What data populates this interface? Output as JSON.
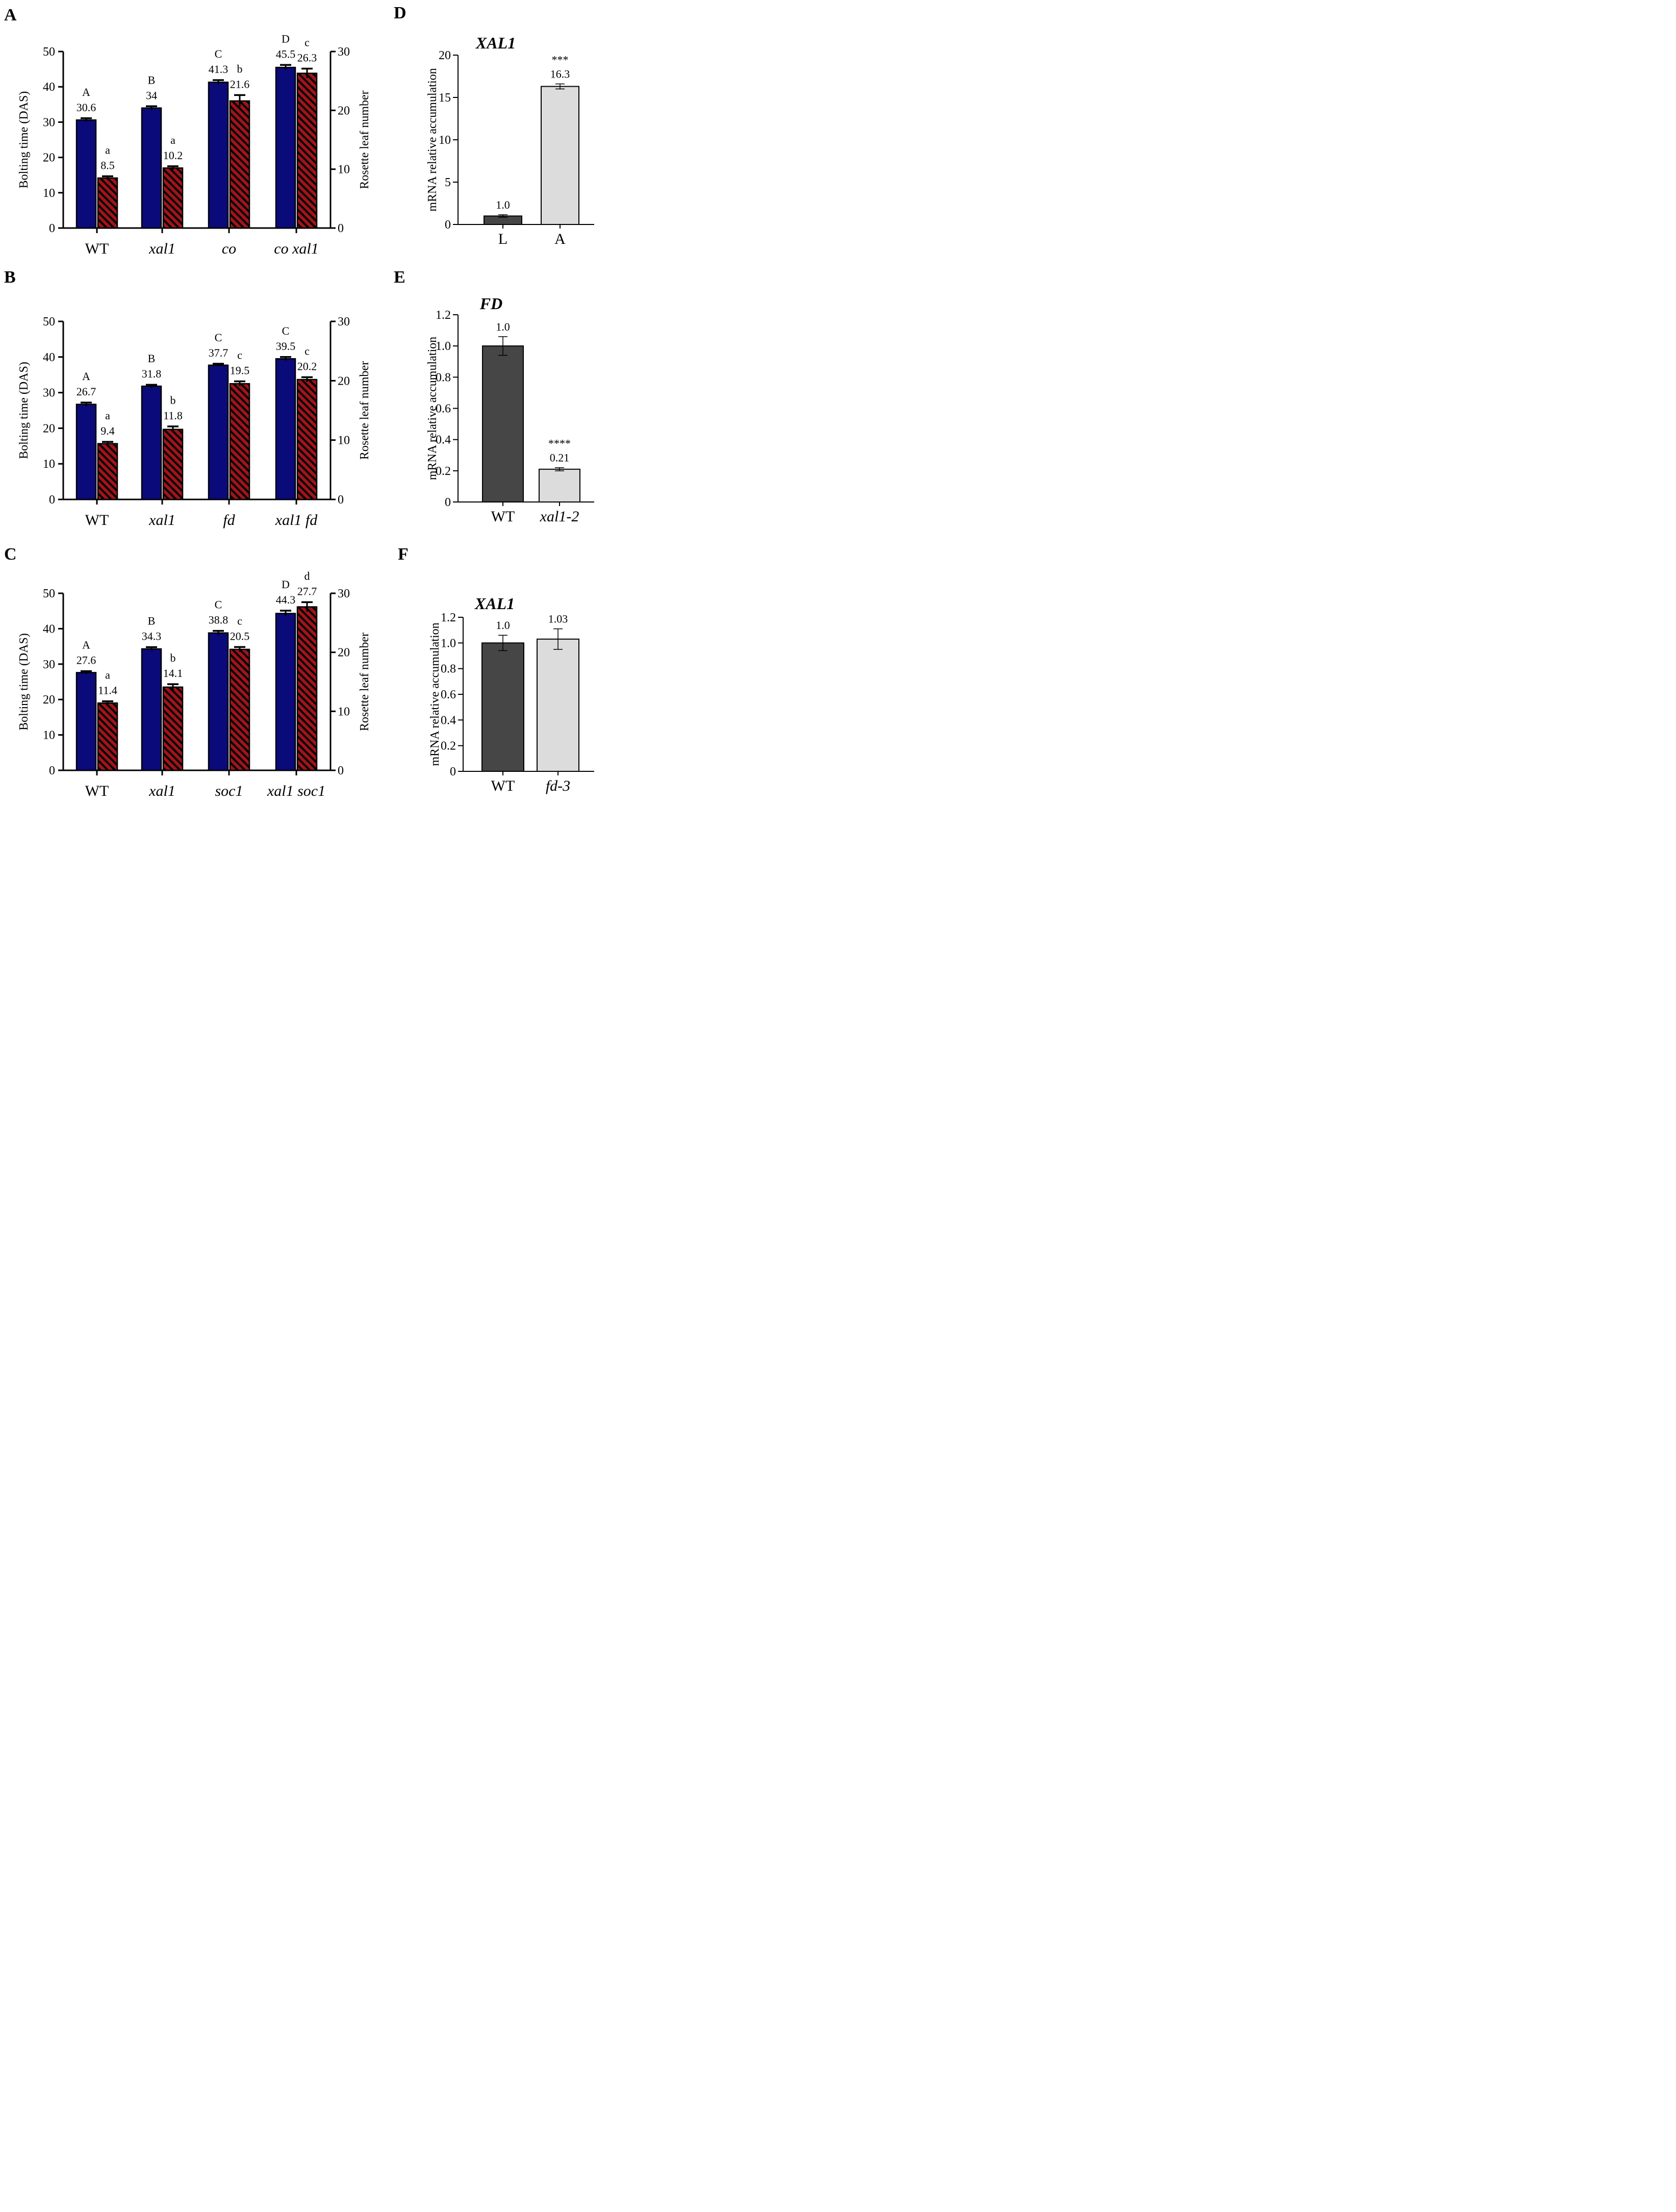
{
  "colors": {
    "bolting": "#0a0a7a",
    "leaf": "#a0141a",
    "leaf_stripe": "#000000",
    "dark_bar": "#464646",
    "light_bar": "#dcdcdc"
  },
  "chart_data": [
    {
      "panel": "A",
      "type": "bar",
      "categories": [
        "WT",
        "xal1",
        "co",
        "co xal1"
      ],
      "categories_italic": [
        false,
        true,
        true,
        true
      ],
      "ylabel": "Bolting time (DAS)",
      "y2label": "Rosette leaf number",
      "ylim": [
        0,
        50
      ],
      "yticks": [
        0,
        10,
        20,
        30,
        40,
        50
      ],
      "y2lim": [
        0,
        30
      ],
      "y2ticks": [
        0,
        10,
        20,
        30
      ],
      "series": [
        {
          "name": "Bolting time",
          "axis": "left",
          "style": "solid",
          "values": [
            30.6,
            34,
            41.3,
            45.5
          ],
          "errors": [
            0.5,
            0.5,
            0.6,
            0.7
          ],
          "labels": [
            "30.6",
            "34",
            "41.3",
            "45.5"
          ],
          "letters": [
            "A",
            "B",
            "C",
            "D"
          ]
        },
        {
          "name": "Rosette leaf number",
          "axis": "right",
          "style": "striped",
          "values": [
            8.5,
            10.2,
            21.6,
            26.3
          ],
          "errors": [
            0.3,
            0.3,
            1.0,
            0.8
          ],
          "labels": [
            "8.5",
            "10.2",
            "21.6",
            "26.3"
          ],
          "letters": [
            "a",
            "a",
            "b",
            "c"
          ]
        }
      ]
    },
    {
      "panel": "B",
      "type": "bar",
      "categories": [
        "WT",
        "xal1",
        "fd",
        "xal1 fd"
      ],
      "categories_italic": [
        false,
        true,
        true,
        true
      ],
      "ylabel": "Bolting time (DAS)",
      "y2label": "Rosette leaf number",
      "ylim": [
        0,
        50
      ],
      "yticks": [
        0,
        10,
        20,
        30,
        40,
        50
      ],
      "y2lim": [
        0,
        30
      ],
      "y2ticks": [
        0,
        10,
        20,
        30
      ],
      "series": [
        {
          "name": "Bolting time",
          "axis": "left",
          "style": "solid",
          "values": [
            26.7,
            31.8,
            37.7,
            39.5
          ],
          "errors": [
            0.5,
            0.4,
            0.4,
            0.5
          ],
          "labels": [
            "26.7",
            "31.8",
            "37.7",
            "39.5"
          ],
          "letters": [
            "A",
            "B",
            "C",
            "C"
          ]
        },
        {
          "name": "Rosette leaf number",
          "axis": "right",
          "style": "striped",
          "values": [
            9.4,
            11.8,
            19.5,
            20.2
          ],
          "errors": [
            0.3,
            0.5,
            0.4,
            0.4
          ],
          "labels": [
            "9.4",
            "11.8",
            "19.5",
            "20.2"
          ],
          "letters": [
            "a",
            "b",
            "c",
            "c"
          ]
        }
      ]
    },
    {
      "panel": "C",
      "type": "bar",
      "categories": [
        "WT",
        "xal1",
        "soc1",
        "xal1 soc1"
      ],
      "categories_italic": [
        false,
        true,
        true,
        true
      ],
      "ylabel": "Bolting time (DAS)",
      "y2label": "Rosette leaf number",
      "ylim": [
        0,
        50
      ],
      "yticks": [
        0,
        10,
        20,
        30,
        40,
        50
      ],
      "y2lim": [
        0,
        30
      ],
      "y2ticks": [
        0,
        10,
        20,
        30
      ],
      "series": [
        {
          "name": "Bolting time",
          "axis": "left",
          "style": "solid",
          "values": [
            27.6,
            34.3,
            38.8,
            44.3
          ],
          "errors": [
            0.4,
            0.5,
            0.6,
            0.8
          ],
          "labels": [
            "27.6",
            "34.3",
            "38.8",
            "44.3"
          ],
          "letters": [
            "A",
            "B",
            "C",
            "D"
          ]
        },
        {
          "name": "Rosette leaf number",
          "axis": "right",
          "style": "striped",
          "values": [
            11.4,
            14.1,
            20.5,
            27.7
          ],
          "errors": [
            0.3,
            0.5,
            0.4,
            0.8
          ],
          "labels": [
            "11.4",
            "14.1",
            "20.5",
            "27.7"
          ],
          "letters": [
            "a",
            "b",
            "c",
            "d"
          ]
        }
      ]
    },
    {
      "panel": "D",
      "type": "bar",
      "title": "XAL1",
      "categories": [
        "L",
        "A"
      ],
      "categories_italic": [
        false,
        false
      ],
      "ylabel": "mRNA relative accumulation",
      "ylim": [
        0,
        20
      ],
      "yticks": [
        0,
        5,
        10,
        15,
        20
      ],
      "tick_labels": [
        "0",
        "5",
        "10",
        "15",
        "20"
      ],
      "values": [
        1.0,
        16.3
      ],
      "errors": [
        0.15,
        0.3
      ],
      "labels": [
        "1.0",
        "16.3"
      ],
      "stars": [
        "",
        "***"
      ]
    },
    {
      "panel": "E",
      "type": "bar",
      "title": "FD",
      "categories": [
        "WT",
        "xal1-2"
      ],
      "categories_italic": [
        false,
        true
      ],
      "ylabel": "mRNA relative accumulation",
      "ylim": [
        0,
        1.2
      ],
      "yticks": [
        0,
        0.2,
        0.4,
        0.6,
        0.8,
        1.0,
        1.2
      ],
      "tick_labels": [
        "0",
        "0.2",
        "0.4",
        "0.6",
        "0.8",
        "1.0",
        "1.2"
      ],
      "values": [
        1.0,
        0.21
      ],
      "errors": [
        0.06,
        0.01
      ],
      "labels": [
        "1.0",
        "0.21"
      ],
      "stars": [
        "",
        "****"
      ]
    },
    {
      "panel": "F",
      "type": "bar",
      "title": "XAL1",
      "categories": [
        "WT",
        "fd-3"
      ],
      "categories_italic": [
        false,
        true
      ],
      "ylabel": "mRNA relative accumulation",
      "ylim": [
        0,
        1.2
      ],
      "yticks": [
        0,
        0.2,
        0.4,
        0.6,
        0.8,
        1.0,
        1.2
      ],
      "tick_labels": [
        "0",
        "0.2",
        "0.4",
        "0.6",
        "0.8",
        "1.0",
        "1.2"
      ],
      "values": [
        1.0,
        1.03
      ],
      "errors": [
        0.06,
        0.08
      ],
      "labels": [
        "1.0",
        "1.03"
      ],
      "stars": [
        "",
        ""
      ]
    }
  ]
}
